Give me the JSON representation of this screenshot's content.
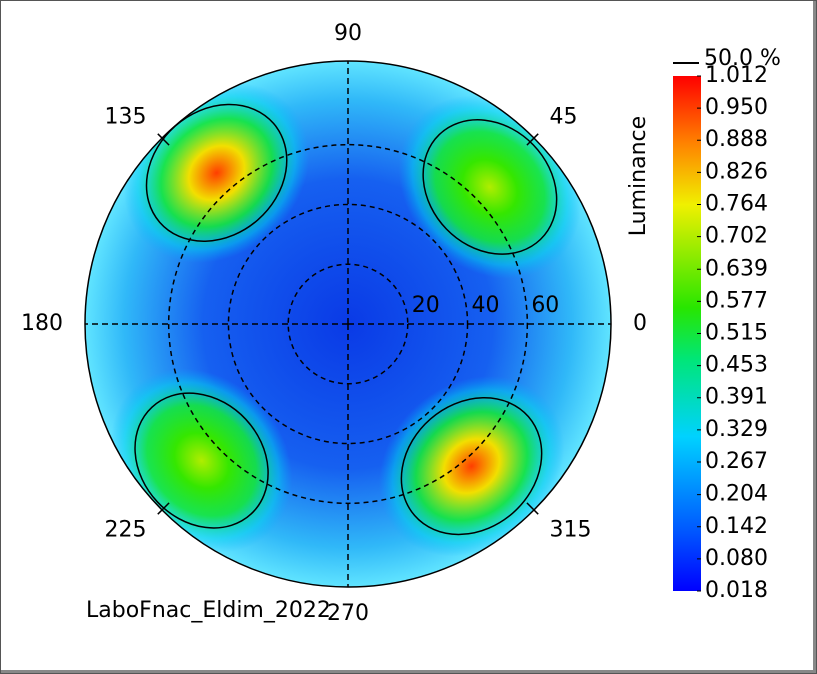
{
  "chart_data": {
    "type": "polar-heatmap",
    "colorbar_title": "Luminance",
    "contour_label": "50.0 %",
    "footnote": "LaboFnac_Eldim_2022",
    "angle_ticks": [
      0,
      45,
      90,
      135,
      180,
      225,
      270,
      315
    ],
    "rlim": [
      0,
      88
    ],
    "rticks": [
      20,
      40,
      60
    ],
    "clim": [
      0.018,
      1.012
    ],
    "cticks": [
      0.018,
      {
        "value": 0.08,
        "label": "0.080"
      },
      0.142,
      0.204,
      0.267,
      0.329,
      0.391,
      0.453,
      0.515,
      0.577,
      0.639,
      0.702,
      0.764,
      0.826,
      0.888,
      {
        "value": 0.95,
        "label": "0.950"
      },
      1.012
    ],
    "peaks": {
      "azimuth": [
        131,
        44,
        223,
        311
      ],
      "inclination": [
        67,
        66,
        67,
        63
      ],
      "luminance": [
        0.95,
        0.7,
        0.7,
        0.95
      ]
    }
  }
}
